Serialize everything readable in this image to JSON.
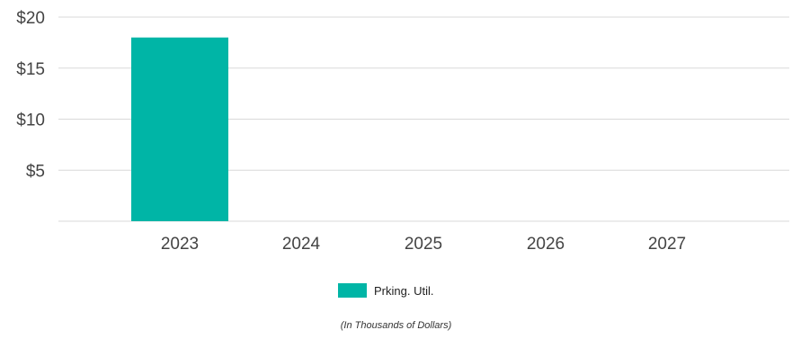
{
  "chart_data": {
    "type": "bar",
    "categories": [
      "2023",
      "2024",
      "2025",
      "2026",
      "2027"
    ],
    "series": [
      {
        "name": "Prking. Util.",
        "values": [
          18,
          0,
          0,
          0,
          0
        ],
        "color": "#00b5a6"
      }
    ],
    "ylim": [
      0,
      20
    ],
    "y_ticks": [
      5,
      10,
      15,
      20
    ],
    "y_tick_labels": [
      "$5",
      "$10",
      "$15",
      "$20"
    ],
    "grid": true,
    "legend_position": "bottom",
    "note": "(In Thousands of Dollars)"
  }
}
